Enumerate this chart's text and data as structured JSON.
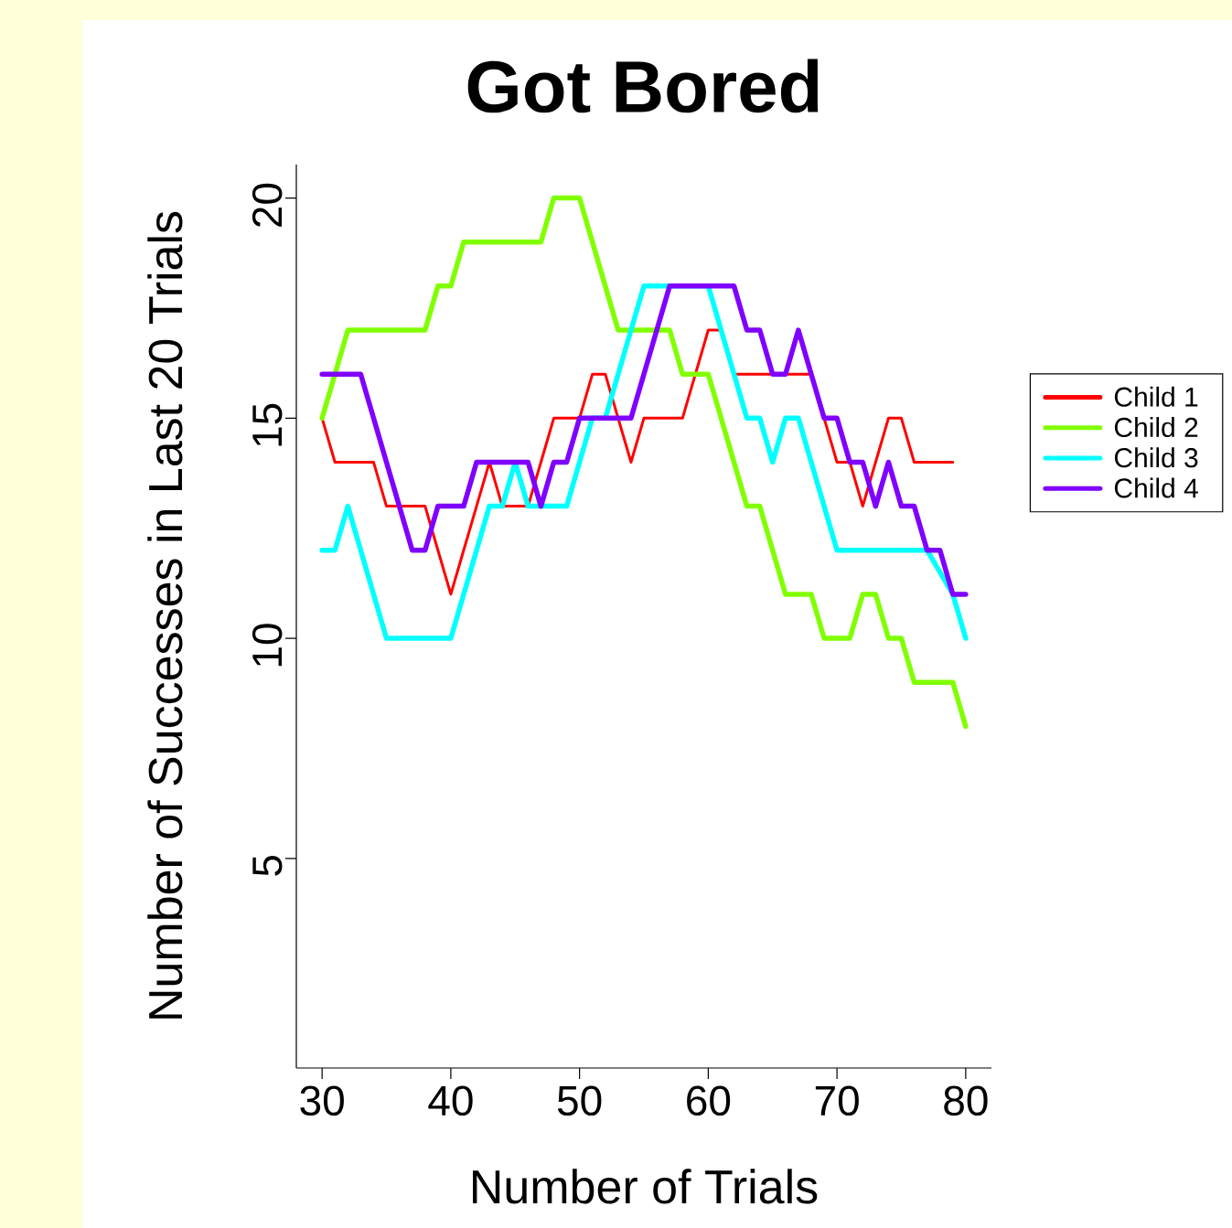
{
  "chart_data": {
    "type": "line",
    "title": "Got Bored",
    "xlabel": "Number of Trials",
    "ylabel": "Number of Successes in Last 20 Trials",
    "x": [
      30,
      31,
      32,
      33,
      34,
      35,
      36,
      37,
      38,
      39,
      40,
      41,
      42,
      43,
      44,
      45,
      46,
      47,
      48,
      49,
      50,
      51,
      52,
      53,
      54,
      55,
      56,
      57,
      58,
      59,
      60,
      61,
      62,
      63,
      64,
      65,
      66,
      67,
      68,
      69,
      70,
      71,
      72,
      73,
      74,
      75,
      76,
      77,
      78,
      79,
      80
    ],
    "series": [
      {
        "name": "Child 1",
        "color": "#ff0000",
        "values": [
          15,
          14,
          14,
          14,
          14,
          13,
          13,
          13,
          13,
          12,
          11,
          12,
          13,
          14,
          13,
          13,
          13,
          14,
          15,
          15,
          15,
          16,
          16,
          15,
          14,
          15,
          15,
          15,
          15,
          16,
          17,
          17,
          16,
          16,
          16,
          16,
          16,
          16,
          16,
          15,
          14,
          14,
          13,
          14,
          15,
          15,
          14,
          14,
          14,
          14,
          null
        ]
      },
      {
        "name": "Child 2",
        "color": "#80ff00",
        "values": [
          15,
          16,
          17,
          17,
          17,
          17,
          17,
          17,
          17,
          18,
          18,
          19,
          19,
          19,
          19,
          19,
          19,
          19,
          20,
          20,
          20,
          19,
          18,
          17,
          17,
          17,
          17,
          17,
          16,
          16,
          16,
          15,
          14,
          13,
          13,
          12,
          11,
          11,
          11,
          10,
          10,
          10,
          11,
          11,
          10,
          10,
          9,
          9,
          9,
          9,
          8
        ]
      },
      {
        "name": "Child 3",
        "color": "#00ffff",
        "values": [
          12,
          12,
          13,
          12,
          11,
          10,
          10,
          10,
          10,
          10,
          10,
          11,
          12,
          13,
          13,
          14,
          13,
          13,
          13,
          13,
          14,
          15,
          15,
          16,
          17,
          18,
          18,
          18,
          null,
          null,
          18,
          17,
          16,
          15,
          15,
          14,
          15,
          15,
          14,
          13,
          12,
          12,
          12,
          12,
          12,
          12,
          12,
          12,
          null,
          11,
          10
        ]
      },
      {
        "name": "Child 4",
        "color": "#8000ff",
        "values": [
          16,
          16,
          16,
          16,
          15,
          14,
          13,
          12,
          12,
          13,
          13,
          13,
          14,
          14,
          14,
          14,
          14,
          13,
          14,
          14,
          15,
          15,
          15,
          15,
          15,
          16,
          17,
          18,
          18,
          18,
          18,
          18,
          18,
          17,
          17,
          16,
          16,
          17,
          16,
          15,
          15,
          14,
          14,
          13,
          14,
          13,
          13,
          12,
          12,
          11,
          11
        ]
      }
    ],
    "xlim": [
      28,
      82
    ],
    "ylim": [
      0.24,
      20.76
    ],
    "xticks": [
      30,
      40,
      50,
      60,
      70,
      80
    ],
    "yticks": [
      5,
      10,
      15,
      20
    ],
    "legend": "right"
  }
}
